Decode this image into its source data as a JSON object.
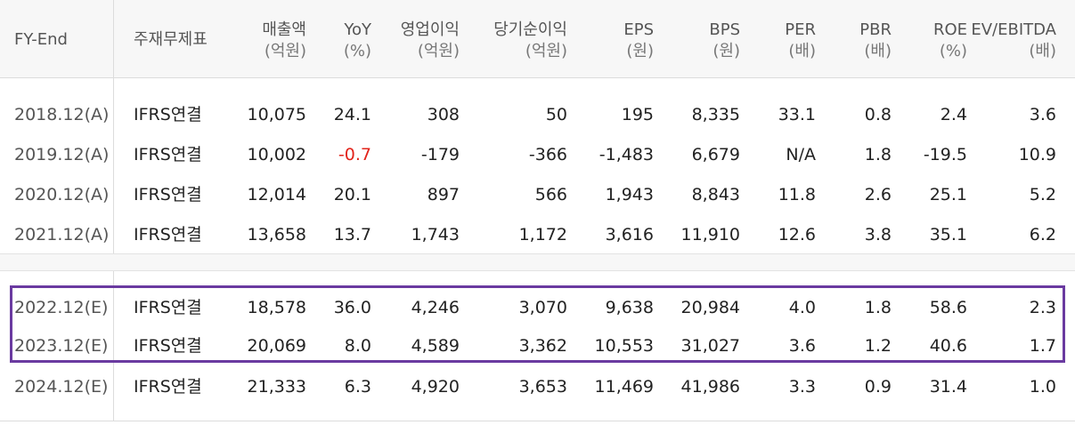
{
  "headers": [
    {
      "key": "fy_end",
      "line1": "FY-End",
      "line2": ""
    },
    {
      "key": "basis",
      "line1": "주재무제표",
      "line2": ""
    },
    {
      "key": "sales",
      "line1": "매출액",
      "line2": "(억원)"
    },
    {
      "key": "yoy",
      "line1": "YoY",
      "line2": "(%)"
    },
    {
      "key": "op",
      "line1": "영업이익",
      "line2": "(억원)"
    },
    {
      "key": "net",
      "line1": "당기순이익",
      "line2": "(억원)"
    },
    {
      "key": "eps",
      "line1": "EPS",
      "line2": "(원)"
    },
    {
      "key": "bps",
      "line1": "BPS",
      "line2": "(원)"
    },
    {
      "key": "per",
      "line1": "PER",
      "line2": "(배)"
    },
    {
      "key": "pbr",
      "line1": "PBR",
      "line2": "(배)"
    },
    {
      "key": "roe",
      "line1": "ROE",
      "line2": "(%)"
    },
    {
      "key": "ev",
      "line1": "EV/EBITDA",
      "line2": "(배)"
    }
  ],
  "rows": [
    [
      "2018.12(A)",
      "IFRS연결",
      "10,075",
      "24.1",
      "308",
      "50",
      "195",
      "8,335",
      "33.1",
      "0.8",
      "2.4",
      "3.6"
    ],
    [
      "2019.12(A)",
      "IFRS연결",
      "10,002",
      "-0.7",
      "-179",
      "-366",
      "-1,483",
      "6,679",
      "N/A",
      "1.8",
      "-19.5",
      "10.9"
    ],
    [
      "2020.12(A)",
      "IFRS연결",
      "12,014",
      "20.1",
      "897",
      "566",
      "1,943",
      "8,843",
      "11.8",
      "2.6",
      "25.1",
      "5.2"
    ],
    [
      "2021.12(A)",
      "IFRS연결",
      "13,658",
      "13.7",
      "1,743",
      "1,172",
      "3,616",
      "11,910",
      "12.6",
      "3.8",
      "35.1",
      "6.2"
    ],
    [
      "2022.12(E)",
      "IFRS연결",
      "18,578",
      "36.0",
      "4,246",
      "3,070",
      "9,638",
      "20,984",
      "4.0",
      "1.8",
      "58.6",
      "2.3"
    ],
    [
      "2023.12(E)",
      "IFRS연결",
      "20,069",
      "8.0",
      "4,589",
      "3,362",
      "10,553",
      "31,027",
      "3.6",
      "1.2",
      "40.6",
      "1.7"
    ],
    [
      "2024.12(E)",
      "IFRS연결",
      "21,333",
      "6.3",
      "4,920",
      "3,653",
      "11,469",
      "41,986",
      "3.3",
      "0.9",
      "31.4",
      "1.0"
    ]
  ],
  "colors": {
    "negative_yoy": "#e2231a",
    "highlight_border": "#6a3aa0"
  }
}
